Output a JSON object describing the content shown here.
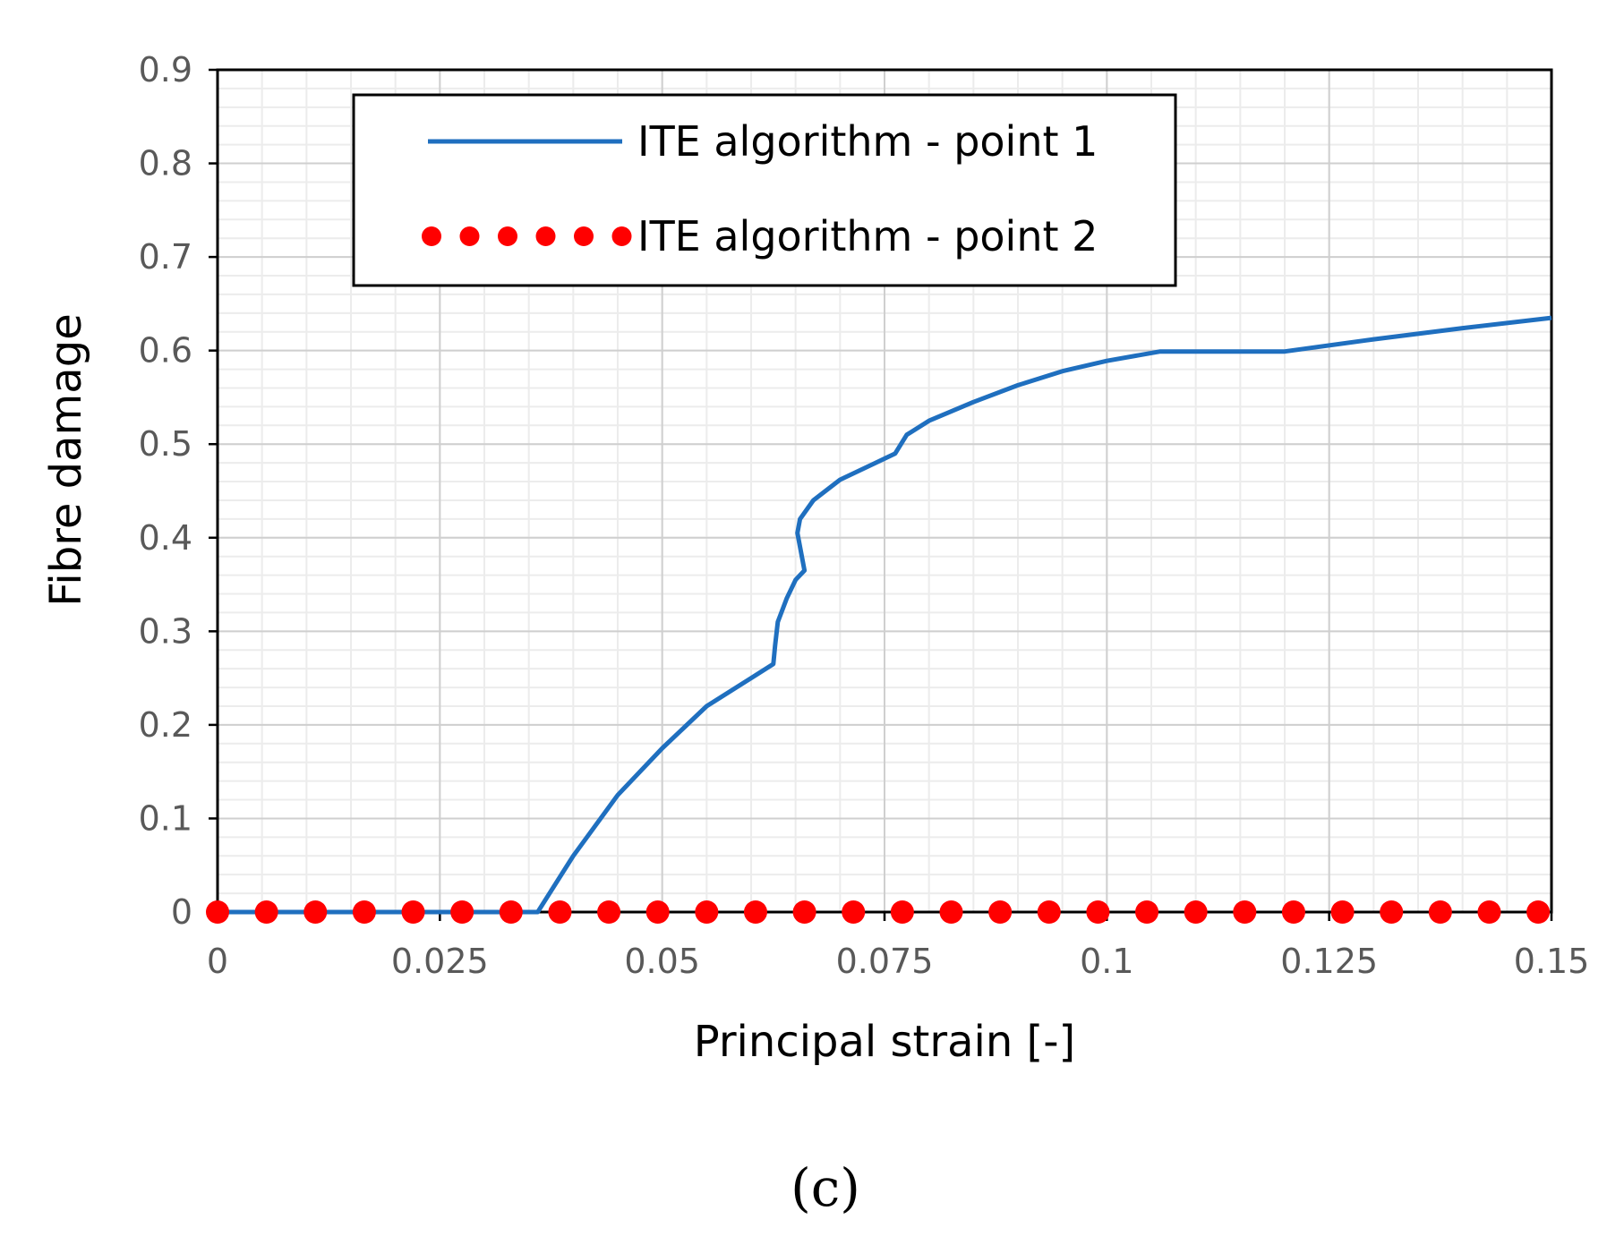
{
  "chart_data": {
    "type": "line",
    "xlabel": "Principal strain [-]",
    "ylabel": "Fibre damage",
    "xlim": [
      0,
      0.15
    ],
    "ylim": [
      0,
      0.9
    ],
    "x_ticks": [
      "0",
      "0.025",
      "0.05",
      "0.075",
      "0.1",
      "0.125",
      "0.15"
    ],
    "y_ticks": [
      "0",
      "0.1",
      "0.2",
      "0.3",
      "0.4",
      "0.5",
      "0.6",
      "0.7",
      "0.8",
      "0.9"
    ],
    "grid": "major and minor",
    "legend_position": "top-left",
    "series": [
      {
        "name": "ITE algorithm - point 1",
        "style": "solid line",
        "color": "#1f6fbf",
        "x": [
          0,
          0.036,
          0.04,
          0.045,
          0.05,
          0.055,
          0.06,
          0.0625,
          0.0627,
          0.063,
          0.064,
          0.065,
          0.066,
          0.0652,
          0.0655,
          0.067,
          0.07,
          0.074,
          0.0762,
          0.0775,
          0.08,
          0.085,
          0.09,
          0.095,
          0.1,
          0.106,
          0.11,
          0.115,
          0.12,
          0.13,
          0.14,
          0.15
        ],
        "y": [
          0,
          0,
          0.06,
          0.125,
          0.175,
          0.22,
          0.25,
          0.265,
          0.285,
          0.31,
          0.335,
          0.355,
          0.365,
          0.405,
          0.42,
          0.44,
          0.462,
          0.48,
          0.49,
          0.51,
          0.525,
          0.545,
          0.563,
          0.578,
          0.589,
          0.599,
          0.599,
          0.599,
          0.599,
          0.612,
          0.624,
          0.635
        ]
      },
      {
        "name": "ITE algorithm - point 2",
        "style": "dots",
        "color": "#ff0000",
        "x": [
          0,
          0.0055,
          0.011,
          0.0165,
          0.022,
          0.0275,
          0.033,
          0.0385,
          0.044,
          0.0495,
          0.055,
          0.0605,
          0.066,
          0.0715,
          0.077,
          0.0825,
          0.088,
          0.0935,
          0.099,
          0.1045,
          0.11,
          0.1155,
          0.121,
          0.1265,
          0.132,
          0.1375,
          0.143,
          0.1485
        ],
        "y": [
          0,
          0,
          0,
          0,
          0,
          0,
          0,
          0,
          0,
          0,
          0,
          0,
          0,
          0,
          0,
          0,
          0,
          0,
          0,
          0,
          0,
          0,
          0,
          0,
          0,
          0,
          0,
          0
        ]
      }
    ]
  },
  "caption": "(c)"
}
